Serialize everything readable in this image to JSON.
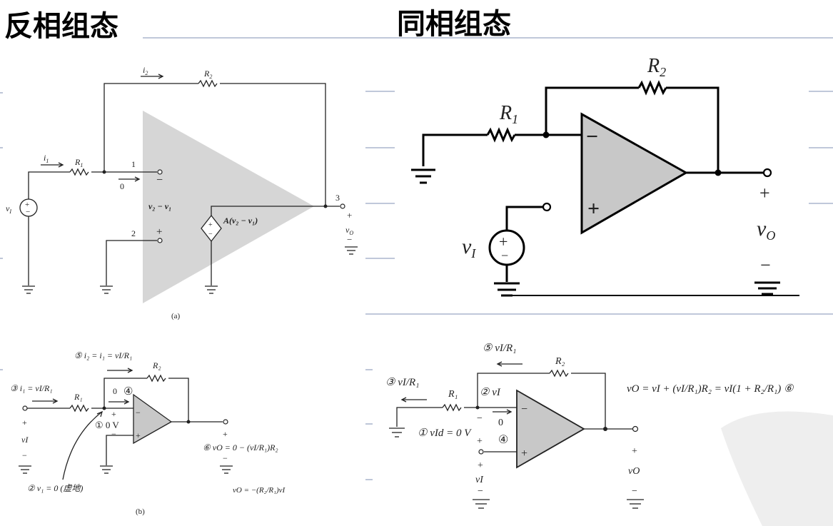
{
  "titles": {
    "inverting": "反相组态",
    "noninverting": "同相组态"
  },
  "top_left": {
    "i2": "i",
    "i2_sub": "2",
    "R2": "R",
    "R2_sub": "2",
    "i1": "i",
    "i1_sub": "1",
    "R1": "R",
    "R1_sub": "1",
    "node1": "1",
    "node2": "2",
    "node3": "3",
    "zero_current": "0",
    "vI": "v",
    "vI_sub": "I",
    "minus": "−",
    "plus": "+",
    "diff_label": "v₂ − v₁",
    "gain_label": "A(v₂ − v₁)",
    "vO": "v",
    "vO_sub": "O",
    "caption": "(a)"
  },
  "top_right": {
    "R1": "R",
    "R1_sub": "1",
    "R2": "R",
    "R2_sub": "2",
    "vI": "v",
    "vI_sub": "I",
    "vO": "v",
    "vO_sub": "O",
    "minus": "−",
    "plus": "+"
  },
  "bottom_left": {
    "s5": "⑤ i₂ = i₁ = vI/R₁",
    "s3": "③ i₁ = vI/R₁",
    "R1": "R₁",
    "R2": "R₂",
    "s4_zero": "0",
    "s4": "④",
    "s1": "① 0 V",
    "vI": "vI",
    "s2": "② v₁ = 0 (虚地)",
    "s6": "⑥ vO = 0 − (vI/R₁)R₂",
    "vO_final": "vO = −(R₂/R₁)vI",
    "plus": "+",
    "minus": "−",
    "caption": "(b)"
  },
  "bottom_right": {
    "s5": "⑤ vI/R₁",
    "s3": "③ vI/R₁",
    "R1": "R₁",
    "R2": "R₂",
    "s2": "② vI",
    "s1": "① vId = 0 V",
    "s4": "④",
    "zero": "0",
    "vI": "vI",
    "vO": "vO",
    "equation": "vO = vI + (vI/R₁)R₂ = vI(1 + R₂/R₁) ⑥",
    "plus": "+",
    "minus": "−"
  },
  "colors": {
    "divider": "#9aa8c4",
    "opamp_fill": "#c8c8c8",
    "gray_triangle": "#d6d6d6"
  }
}
